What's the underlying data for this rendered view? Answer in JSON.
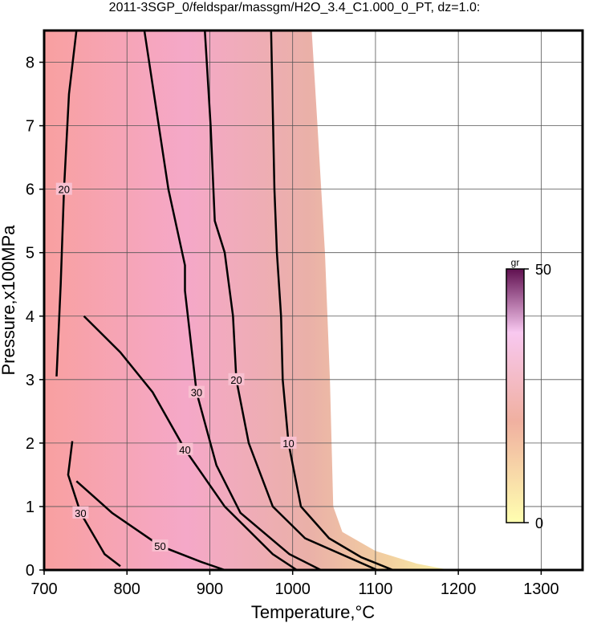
{
  "chart_data": {
    "type": "contour",
    "title": "2011-3SGP_0/feldspar/massgm/H2O_3.4_C1.000_0_PT, dz=1.0:",
    "xlabel": "Temperature,°C",
    "ylabel": "Pressure,x100MPa",
    "xlim": [
      700,
      1350
    ],
    "ylim": [
      0,
      8.5
    ],
    "xticks": [
      700,
      800,
      900,
      1000,
      1100,
      1200,
      1300
    ],
    "yticks": [
      0,
      1,
      2,
      3,
      4,
      5,
      6,
      7,
      8
    ],
    "grid": true,
    "envelope": {
      "x": [
        700,
        1023,
        1030,
        1039,
        1045,
        1049,
        1060,
        1100,
        1150,
        1190
      ],
      "y": [
        8.5,
        8.5,
        7,
        5,
        3,
        1,
        0.6,
        0.3,
        0.1,
        0
      ]
    },
    "contours": [
      {
        "level": 10,
        "x": [
          974,
          978,
          981,
          986,
          988,
          995,
          1010,
          1044,
          1083,
          1121
        ],
        "y": [
          8.5,
          6,
          5,
          4,
          3,
          2,
          1,
          0.5,
          0.2,
          0
        ]
      },
      {
        "level": 20,
        "x": [
          894,
          901,
          906,
          918,
          928,
          932,
          947,
          976,
          1015,
          1102
        ],
        "y": [
          8.5,
          7,
          5.5,
          5,
          4,
          3,
          2,
          1,
          0.5,
          0
        ]
      },
      {
        "level": 30,
        "x": [
          821,
          850,
          870,
          870,
          884,
          908,
          937,
          996,
          1034
        ],
        "y": [
          8.5,
          6,
          4.8,
          4.4,
          2.8,
          1.65,
          0.9,
          0.25,
          0
        ]
      },
      {
        "level": 40,
        "x": [
          748,
          792,
          831,
          870,
          918,
          976,
          1005
        ],
        "y": [
          4,
          3.43,
          2.8,
          1.9,
          1,
          0.25,
          0
        ]
      },
      {
        "level": 50,
        "x": [
          739,
          782,
          840,
          889,
          918
        ],
        "y": [
          1.4,
          0.9,
          0.38,
          0.13,
          0
        ]
      },
      {
        "level": 20,
        "x": [
          739,
          730,
          724,
          720,
          715
        ],
        "y": [
          8.5,
          7.5,
          6,
          4.5,
          3.05
        ]
      },
      {
        "level": 30,
        "x": [
          734,
          729,
          744,
          773,
          792
        ],
        "y": [
          2.03,
          1.5,
          0.9,
          0.25,
          0.06
        ]
      }
    ],
    "colorbar": {
      "label": "gr",
      "lim": [
        0,
        50
      ],
      "ticks": [
        0,
        50
      ]
    }
  }
}
